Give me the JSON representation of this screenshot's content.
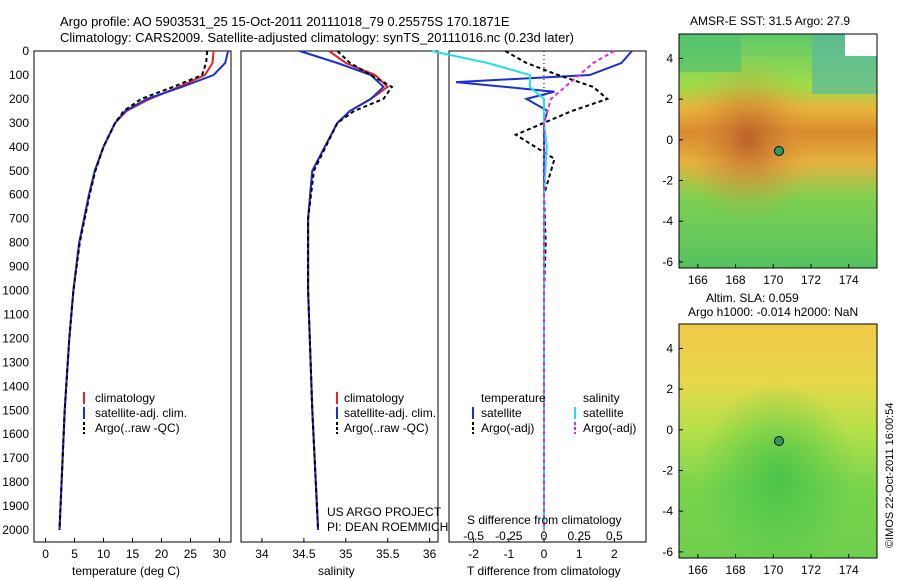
{
  "header": {
    "line1": "Argo profile: AO 5903531_25 15-Oct-2011 20111018_79 0.25575S 170.1871E",
    "line2": "Climatology: CARS2009. Satellite-adjusted climatology: synTS_20111016.nc (0.23d later)"
  },
  "depth_ticks": [
    "0",
    "100",
    "200",
    "300",
    "400",
    "500",
    "600",
    "700",
    "800",
    "900",
    "1000",
    "1100",
    "1200",
    "1300",
    "1400",
    "1500",
    "1600",
    "1700",
    "1800",
    "1900",
    "2000"
  ],
  "colors": {
    "climatology": "#e8231d",
    "satellite": "#1a2fd6",
    "argo": "#000000",
    "sal_sat": "#22e0e8",
    "sal_argo": "#e02ad8"
  },
  "temp_panel": {
    "xlabel": "temperature (deg C)",
    "xticks": [
      "0",
      "5",
      "10",
      "15",
      "20",
      "25",
      "30"
    ],
    "legend": [
      "climatology",
      "satellite-adj. clim.",
      "Argo(..raw -QC)"
    ]
  },
  "sal_panel": {
    "xlabel": "salinity",
    "xticks": [
      "34",
      "34.5",
      "35",
      "35.5",
      "36"
    ],
    "legend": [
      "climatology",
      "satellite-adj. clim.",
      "Argo(..raw -QC)"
    ],
    "note1": "US ARGO PROJECT",
    "note2": "PI: DEAN ROEMMICH"
  },
  "diff_panel": {
    "xlabel_bottom": "T difference from climatology",
    "xlabel_top": "S difference from climatology",
    "xticks_t": [
      "-2",
      "-1",
      "0",
      "1",
      "2"
    ],
    "xticks_s": [
      "-0.5",
      "-0.25",
      "0",
      "0.25",
      "0.5"
    ],
    "legend_t_title": "temperature",
    "legend_s_title": "salinity",
    "legend_t": [
      "satellite",
      "Argo(-adj)"
    ],
    "legend_s": [
      "satellite",
      "Argo(-adj)"
    ]
  },
  "map_sst": {
    "title": "AMSR-E SST: 31.5 Argo: 27.9",
    "xticks": [
      "166",
      "168",
      "170",
      "172",
      "174"
    ],
    "yticks": [
      "4",
      "2",
      "0",
      "-2",
      "-4",
      "-6"
    ]
  },
  "map_sla": {
    "title1": "Altim. SLA: 0.059",
    "title2": "Argo h1000: -0.014 h2000: NaN",
    "xticks": [
      "166",
      "168",
      "170",
      "172",
      "174"
    ],
    "yticks": [
      "4",
      "2",
      "0",
      "-2",
      "-4",
      "-6"
    ]
  },
  "side_credit": "©IMOS 22-Oct-2011 16:00:54",
  "chart_data": [
    {
      "type": "line",
      "name": "temperature profile",
      "xlabel": "temperature (deg C)",
      "ylabel": "",
      "xlim": [
        -2,
        32
      ],
      "ylim": [
        2050,
        0
      ],
      "series": [
        {
          "name": "climatology",
          "depth": [
            0,
            50,
            100,
            150,
            200,
            250,
            300,
            400,
            500,
            600,
            800,
            1000,
            1200,
            1500,
            2000
          ],
          "values": [
            29.0,
            28.8,
            27.5,
            23.0,
            18.0,
            14.0,
            12.0,
            10.0,
            8.5,
            7.5,
            5.8,
            4.8,
            4.1,
            3.3,
            2.4
          ]
        },
        {
          "name": "satellite-adj. clim.",
          "depth": [
            0,
            50,
            100,
            150,
            200,
            250,
            300,
            400,
            500,
            600,
            800,
            1000,
            1200,
            1500,
            2000
          ],
          "values": [
            31.5,
            31.0,
            29.0,
            23.5,
            17.5,
            13.8,
            12.0,
            10.0,
            8.5,
            7.5,
            5.8,
            4.8,
            4.1,
            3.3,
            2.4
          ]
        },
        {
          "name": "Argo(..raw -QC)",
          "depth": [
            0,
            50,
            100,
            150,
            200,
            250,
            300,
            400,
            500,
            600,
            800,
            1000,
            1200,
            1500,
            2000
          ],
          "values": [
            27.9,
            27.7,
            27.0,
            22.0,
            16.5,
            13.5,
            12.0,
            10.0,
            8.6,
            7.6,
            5.9,
            4.8,
            4.1,
            3.3,
            2.4
          ]
        }
      ]
    },
    {
      "type": "line",
      "name": "salinity profile",
      "xlabel": "salinity",
      "ylabel": "",
      "xlim": [
        33.75,
        36.1
      ],
      "ylim": [
        2050,
        0
      ],
      "series": [
        {
          "name": "climatology",
          "depth": [
            0,
            50,
            100,
            150,
            200,
            250,
            300,
            400,
            500,
            700,
            1000,
            1500,
            2000
          ],
          "values": [
            34.8,
            35.0,
            35.35,
            35.5,
            35.3,
            35.05,
            34.9,
            34.75,
            34.6,
            34.55,
            34.55,
            34.6,
            34.67
          ]
        },
        {
          "name": "satellite-adj. clim.",
          "depth": [
            0,
            50,
            100,
            150,
            200,
            250,
            300,
            400,
            500,
            700,
            1000,
            1500,
            2000
          ],
          "values": [
            34.45,
            34.9,
            35.3,
            35.45,
            35.3,
            35.05,
            34.9,
            34.75,
            34.6,
            34.55,
            34.55,
            34.6,
            34.67
          ]
        },
        {
          "name": "Argo(..raw -QC)",
          "depth": [
            0,
            50,
            100,
            150,
            200,
            250,
            300,
            400,
            500,
            700,
            1000,
            1500,
            2000
          ],
          "values": [
            34.9,
            35.05,
            35.3,
            35.55,
            35.45,
            35.1,
            34.9,
            34.76,
            34.62,
            34.55,
            34.55,
            34.6,
            34.67
          ]
        }
      ]
    },
    {
      "type": "line",
      "name": "difference from climatology",
      "xlabel": "T difference from climatology",
      "ylabel": "",
      "xlim": [
        -2.7,
        2.9
      ],
      "ylim": [
        2050,
        0
      ],
      "series": [
        {
          "name": "temperature satellite",
          "depth": [
            0,
            50,
            100,
            130,
            170,
            200,
            250,
            300,
            400,
            600,
            800,
            1000,
            1500,
            2000
          ],
          "values": [
            2.5,
            2.2,
            1.3,
            -2.5,
            0.3,
            -0.5,
            0.1,
            0.0,
            0.0,
            0.0,
            0.0,
            0.0,
            0.0,
            0.0
          ]
        },
        {
          "name": "temperature Argo(-adj)",
          "depth": [
            0,
            50,
            100,
            150,
            200,
            250,
            350,
            450,
            600,
            800,
            1000,
            1500,
            2000
          ],
          "values": [
            -1.1,
            -0.5,
            0.4,
            1.4,
            1.8,
            0.8,
            -0.8,
            0.3,
            0.0,
            0.05,
            0.0,
            0.0,
            0.0
          ]
        },
        {
          "name": "salinity satellite",
          "depth": [
            0,
            50,
            100,
            150,
            200,
            300,
            400,
            600,
            1000,
            1500,
            2000
          ],
          "values": [
            -0.8,
            -0.4,
            -0.1,
            -0.1,
            0.0,
            0.0,
            0.02,
            0.0,
            0.0,
            0.0,
            0.0
          ]
        },
        {
          "name": "salinity Argo(-adj)",
          "depth": [
            0,
            50,
            100,
            150,
            200,
            300,
            400,
            600,
            1000,
            1500,
            2000
          ],
          "values": [
            0.5,
            0.35,
            0.25,
            0.15,
            0.05,
            0.0,
            0.0,
            0.0,
            0.0,
            0.0,
            0.0
          ]
        }
      ]
    },
    {
      "type": "heatmap",
      "name": "AMSR-E SST map",
      "title": "AMSR-E SST: 31.5 Argo: 27.9",
      "xlim": [
        165,
        175.5
      ],
      "ylim": [
        -6.3,
        5.2
      ],
      "argo_position": {
        "lon": 170.19,
        "lat": -0.26
      }
    },
    {
      "type": "heatmap",
      "name": "Altimeter SLA map",
      "title": "Altim. SLA: 0.059",
      "xlim": [
        165,
        175.5
      ],
      "ylim": [
        -6.3,
        5.2
      ],
      "argo_position": {
        "lon": 170.19,
        "lat": -0.26
      }
    }
  ]
}
